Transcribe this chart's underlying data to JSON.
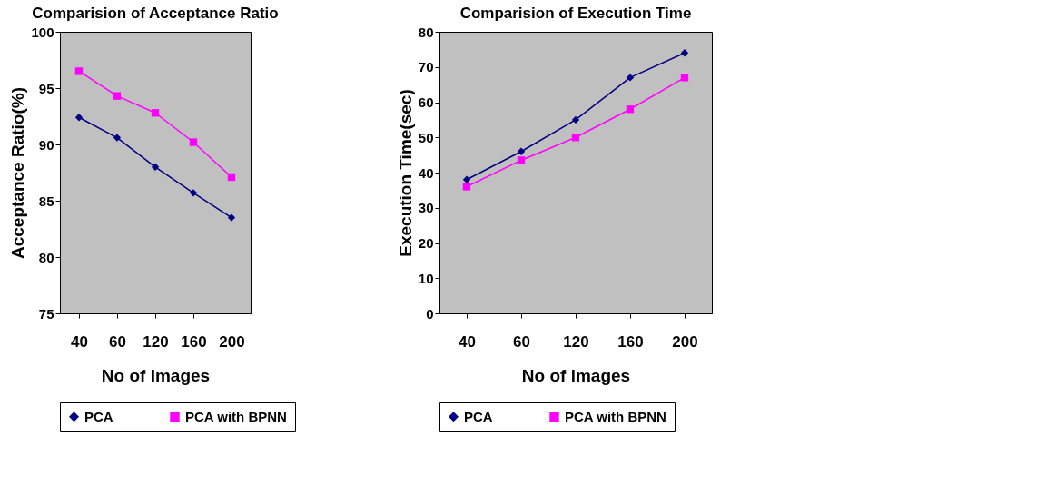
{
  "chart_data": [
    {
      "type": "line",
      "title": "Comparision of Acceptance Ratio",
      "xlabel": "No of Images",
      "ylabel": "Acceptance Ratio(%)",
      "categories": [
        "40",
        "60",
        "120",
        "160",
        "200"
      ],
      "ylim": [
        75,
        100
      ],
      "yticks": [
        75,
        80,
        85,
        90,
        95,
        100
      ],
      "grid": false,
      "legend": "bottom",
      "series": [
        {
          "name": "PCA",
          "color": "#000080",
          "marker": "diamond",
          "values": [
            92.4,
            90.6,
            88.0,
            85.7,
            83.5
          ]
        },
        {
          "name": "PCA with BPNN",
          "color": "#ff00ff",
          "marker": "square",
          "values": [
            96.5,
            94.3,
            92.8,
            90.2,
            87.1
          ]
        }
      ]
    },
    {
      "type": "line",
      "title": "Comparision of Execution Time",
      "xlabel": "No of images",
      "ylabel": "Execution Time(sec)",
      "categories": [
        "40",
        "60",
        "120",
        "160",
        "200"
      ],
      "ylim": [
        0,
        80
      ],
      "yticks": [
        0,
        10,
        20,
        30,
        40,
        50,
        60,
        70,
        80
      ],
      "grid": false,
      "legend": "bottom",
      "series": [
        {
          "name": "PCA",
          "color": "#000080",
          "marker": "diamond",
          "values": [
            38,
            46,
            55,
            67,
            74
          ]
        },
        {
          "name": "PCA with BPNN",
          "color": "#ff00ff",
          "marker": "square",
          "values": [
            36,
            43.5,
            50,
            58,
            67
          ]
        }
      ]
    }
  ]
}
